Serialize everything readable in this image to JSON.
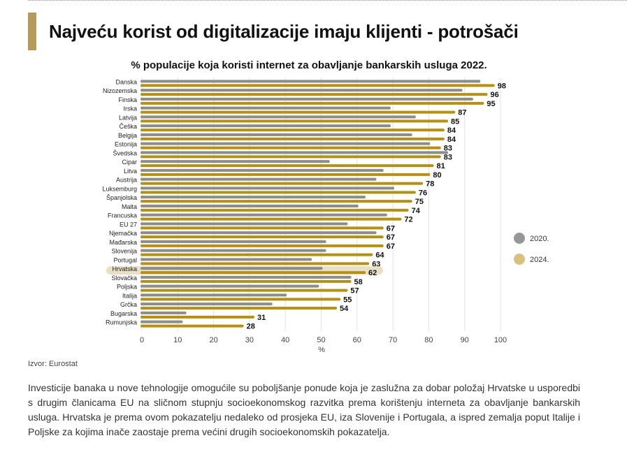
{
  "title": "Najveću korist od digitalizacije imaju klijenti - potrošači",
  "source": "Izvor: Eurostat",
  "paragraph": "Investicije banaka u nove tehnologije omogućile su poboljšanje ponude koja je zaslužna za dobar položaj Hrvatske u usporedbi s drugim članicama EU na sličnom stupnju socioekonomskog razvitka prema korištenju interneta za obavljanje bankarskih usluga. Hrvatska je prema ovom pokazatelju nedaleko od prosjeka EU, iza Slovenije i Portugala, a ispred zemalja poput Italije i Poljske za kojima inače zaostaje prema većini drugih socioekonomskih pokazatelja.",
  "colors": {
    "accent": "#b59a5c",
    "series_2020": "#8c8c8c",
    "series_2024": "#b8900f",
    "highlight": "#e9dfc4"
  },
  "chart_data": {
    "type": "bar",
    "orientation": "horizontal",
    "title": "% populacije koja koristi internet za obavljanje bankarskih usluga 2022.",
    "xlabel": "%",
    "xlim": [
      0,
      100
    ],
    "xticks": [
      0,
      10,
      20,
      30,
      40,
      50,
      60,
      70,
      80,
      90,
      100
    ],
    "grid": true,
    "legend_position": "right",
    "highlighted_category": "Hrvatska",
    "categories": [
      "Danska",
      "Nizozemska",
      "Finska",
      "Irska",
      "Latvija",
      "Češka",
      "Belgija",
      "Estonija",
      "Švedska",
      "Cipar",
      "Litva",
      "Austrija",
      "Luksemburg",
      "Španjolska",
      "Malta",
      "Francuska",
      "EU 27",
      "Njemačka",
      "Mađarska",
      "Slovenija",
      "Portugal",
      "Hrvatska",
      "Slovačka",
      "Poljska",
      "Italija",
      "Grčka",
      "Bugarska",
      "Rumunjska"
    ],
    "series": [
      {
        "name": "2020.",
        "values": [
          94,
          89,
          92,
          69,
          76,
          69,
          75,
          80,
          85,
          52,
          67,
          65,
          70,
          62,
          60,
          68,
          57,
          65,
          51,
          51,
          47,
          50,
          58,
          49,
          40,
          36,
          12,
          11
        ]
      },
      {
        "name": "2024.",
        "values": [
          98,
          96,
          95,
          87,
          85,
          84,
          84,
          83,
          83,
          81,
          80,
          78,
          76,
          75,
          74,
          72,
          67,
          67,
          67,
          64,
          63,
          62,
          58,
          57,
          55,
          54,
          31,
          28
        ]
      }
    ],
    "data_labels_series": "2024."
  }
}
